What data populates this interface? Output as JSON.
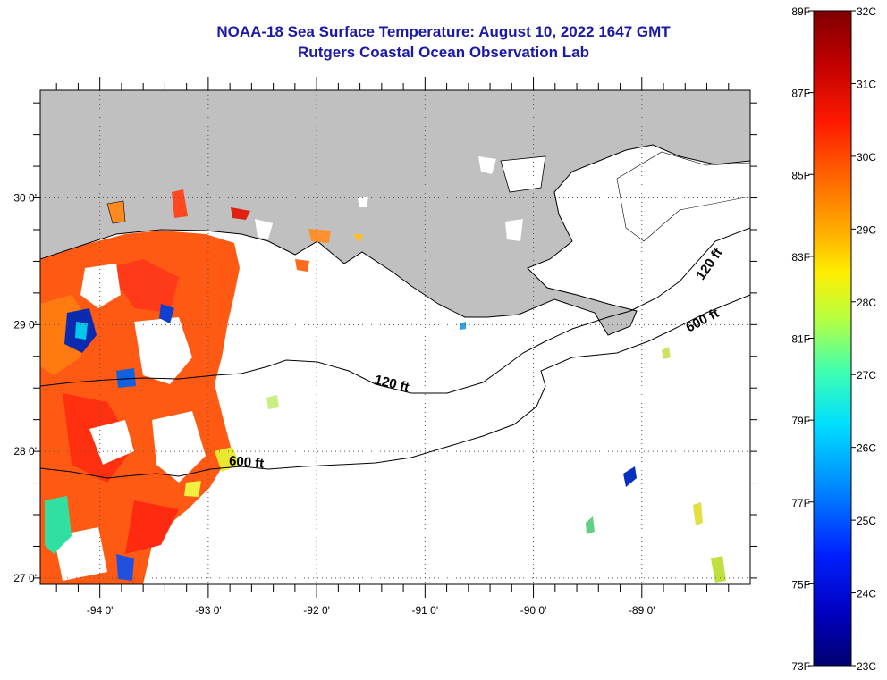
{
  "header": {
    "title": "NOAA-18 Sea Surface Temperature:  August 10, 2022 1647 GMT",
    "subtitle": "Rutgers Coastal Ocean Observation Lab"
  },
  "map": {
    "lat_labels": [
      "30 0'",
      "29 0'",
      "28 0'",
      "27 0'"
    ],
    "lon_labels": [
      "-94 0'",
      "-93 0'",
      "-92 0'",
      "-91 0'",
      "-90 0'",
      "-89 0'"
    ],
    "lat_range": [
      26.95,
      30.85
    ],
    "lon_range": [
      -94.55,
      -88.0
    ],
    "contours": [
      {
        "label": "120 ft"
      },
      {
        "label": "600 ft"
      },
      {
        "label": "120 ft"
      },
      {
        "label": "600 ft"
      }
    ],
    "land_color": "#c0c0c0",
    "grid": "dotted"
  },
  "colorbar": {
    "fahrenheit_labels": [
      "89F",
      "87F",
      "85F",
      "83F",
      "81F",
      "79F",
      "77F",
      "75F",
      "73F"
    ],
    "celsius_labels": [
      "32C",
      "31C",
      "30C",
      "29C",
      "28C",
      "27C",
      "26C",
      "25C",
      "24C",
      "23C"
    ],
    "colors": [
      "#800000",
      "#d00000",
      "#ff2000",
      "#ff7000",
      "#ffc000",
      "#ffff00",
      "#a0ff50",
      "#00ffd0",
      "#00c0ff",
      "#0050ff",
      "#0000d0",
      "#000080"
    ]
  }
}
